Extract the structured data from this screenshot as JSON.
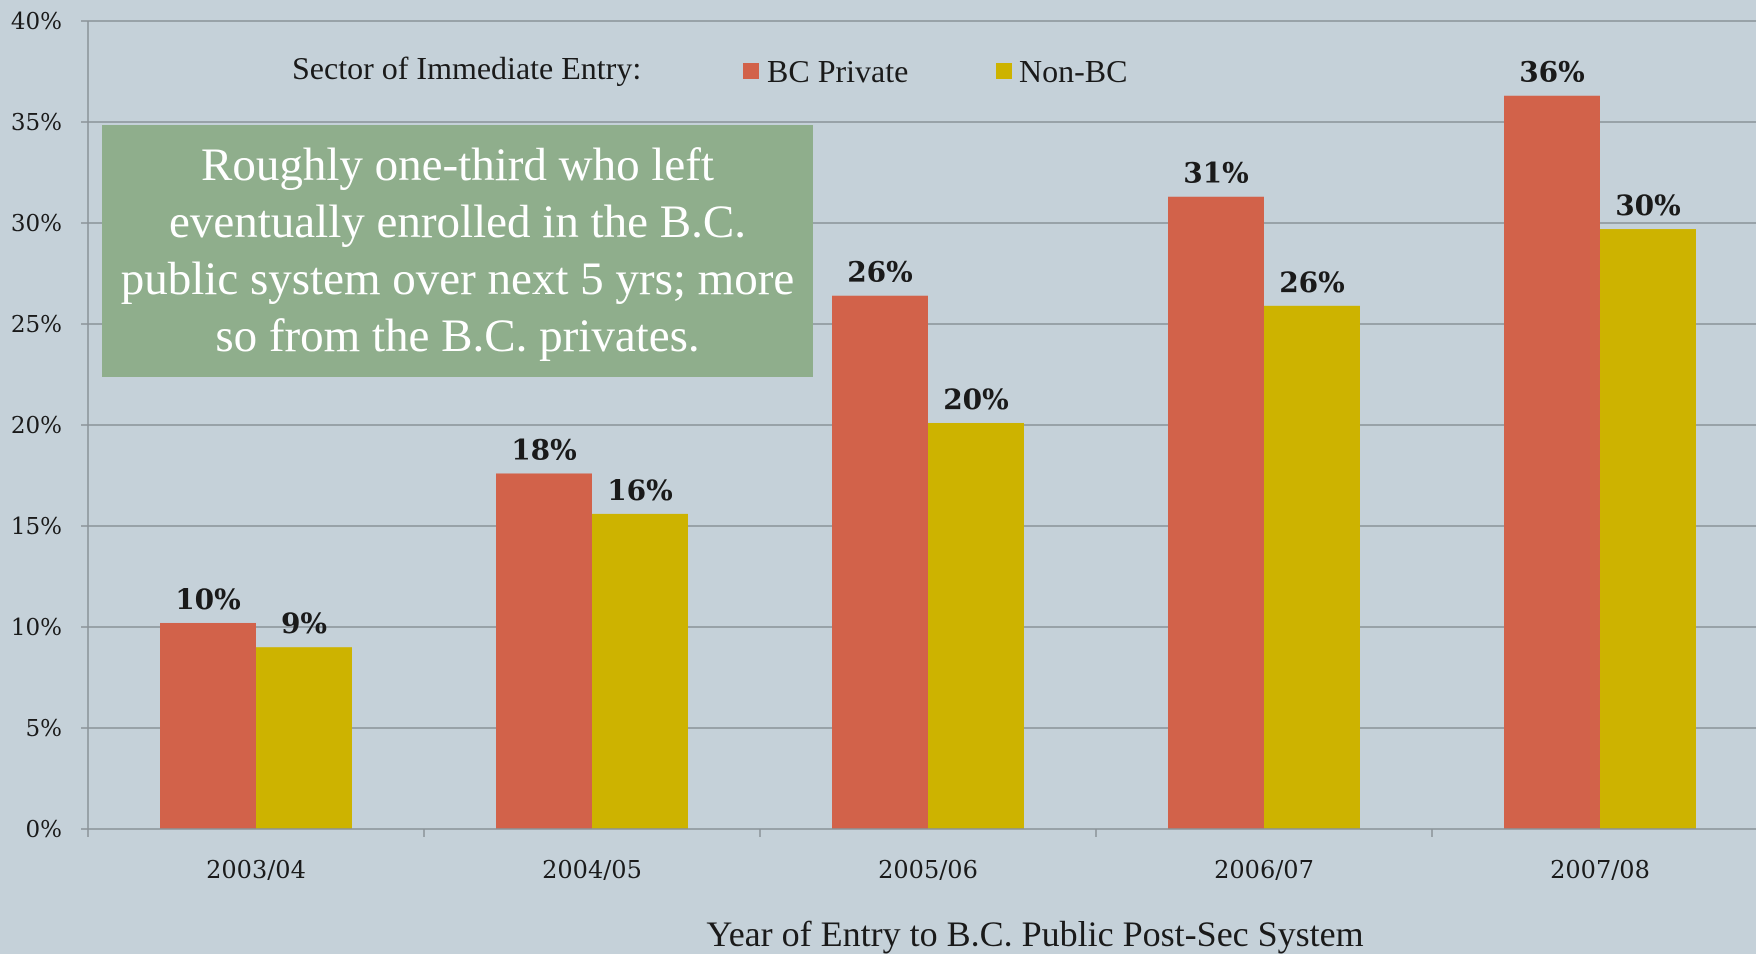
{
  "chart_data": {
    "type": "bar",
    "title": "",
    "xlabel": "Year of Entry to B.C. Public Post-Sec System",
    "ylabel": "",
    "ylim": [
      0,
      40
    ],
    "yticks": [
      "0%",
      "5%",
      "10%",
      "15%",
      "20%",
      "25%",
      "30%",
      "35%",
      "40%"
    ],
    "grid": true,
    "legend_title": "Sector of  Immediate Entry:",
    "legend_position": "top",
    "categories": [
      "2003/04",
      "2004/05",
      "2005/06",
      "2006/07",
      "2007/08"
    ],
    "series": [
      {
        "name": "BC Private",
        "color": "#d2624a",
        "values": [
          10.2,
          17.6,
          26.4,
          31.3,
          36.3
        ],
        "labels": [
          "10%",
          "18%",
          "26%",
          "31%",
          "36%"
        ]
      },
      {
        "name": "Non-BC",
        "color": "#cdb300",
        "values": [
          9.0,
          15.6,
          20.1,
          25.9,
          29.7
        ],
        "labels": [
          "9%",
          "16%",
          "20%",
          "26%",
          "30%"
        ]
      }
    ],
    "annotation": "Roughly one-third who left eventually enrolled in the B.C. public system over next 5 yrs; more so from the B.C. privates."
  },
  "colors": {
    "background": "#c5d1d9",
    "gridline": "#8a9298",
    "annotation_box": "#8fae8c"
  }
}
